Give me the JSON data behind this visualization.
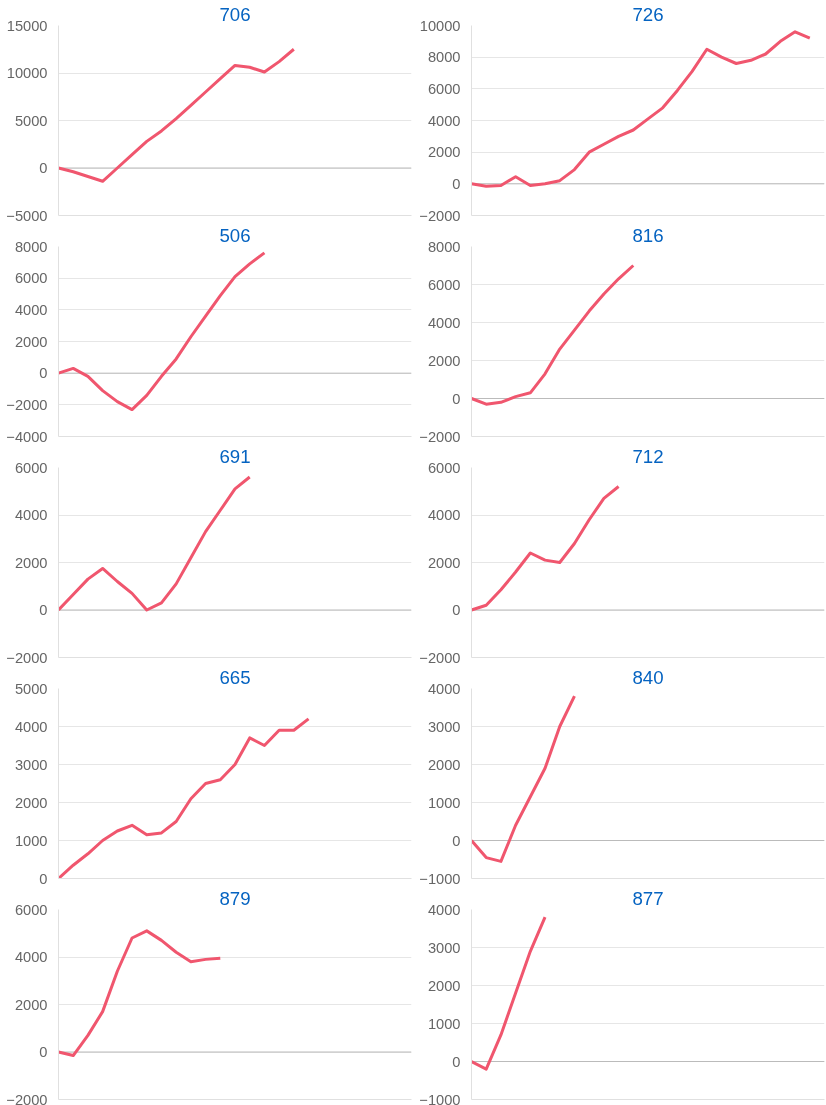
{
  "chart_data": [
    {
      "type": "line",
      "title": "706",
      "categories": [
        null,
        null,
        null,
        null,
        null,
        null,
        null,
        null,
        null,
        null,
        null,
        null,
        null,
        null,
        null,
        null,
        null,
        null,
        null,
        null,
        null,
        null,
        null,
        null,
        null
      ],
      "series": [
        {
          "color": "#f0566e",
          "values": [
            0,
            -400,
            -900,
            -1400,
            0,
            1400,
            2800,
            3900,
            5200,
            6600,
            8000,
            9400,
            10800,
            10600,
            10100,
            11200,
            12500,
            null,
            null,
            null,
            null,
            null,
            null,
            null,
            null
          ]
        }
      ],
      "ylim": [
        -5000,
        15000
      ],
      "yticks": [
        -5000,
        0,
        5000,
        10000,
        15000
      ],
      "grid": "y",
      "tick_labels": "y"
    },
    {
      "type": "line",
      "title": "726",
      "categories": [
        null,
        null,
        null,
        null,
        null,
        null,
        null,
        null,
        null,
        null,
        null,
        null,
        null,
        null,
        null,
        null,
        null,
        null,
        null,
        null,
        null,
        null,
        null,
        null,
        null
      ],
      "series": [
        {
          "color": "#f0566e",
          "values": [
            0,
            -150,
            -100,
            450,
            -100,
            0,
            200,
            900,
            2000,
            2500,
            3000,
            3400,
            4100,
            4800,
            5900,
            7100,
            8500,
            8000,
            7600,
            7800,
            8200,
            9000,
            9600,
            9200,
            null
          ]
        }
      ],
      "ylim": [
        -2000,
        10000
      ],
      "yticks": [
        -2000,
        0,
        2000,
        4000,
        6000,
        8000,
        10000
      ],
      "grid": "y",
      "tick_labels": "y"
    },
    {
      "type": "line",
      "title": "506",
      "categories": [
        null,
        null,
        null,
        null,
        null,
        null,
        null,
        null,
        null,
        null,
        null,
        null,
        null,
        null,
        null,
        null,
        null,
        null,
        null,
        null,
        null,
        null,
        null,
        null,
        null
      ],
      "series": [
        {
          "color": "#f0566e",
          "values": [
            0,
            300,
            -200,
            -1100,
            -1800,
            -2300,
            -1400,
            -200,
            900,
            2300,
            3600,
            4900,
            6100,
            6900,
            7600,
            null,
            null,
            null,
            null,
            null,
            null,
            null,
            null,
            null,
            null
          ]
        }
      ],
      "ylim": [
        -4000,
        8000
      ],
      "yticks": [
        -4000,
        -2000,
        0,
        2000,
        4000,
        6000,
        8000
      ],
      "grid": "y",
      "tick_labels": "y"
    },
    {
      "type": "line",
      "title": "816",
      "categories": [
        null,
        null,
        null,
        null,
        null,
        null,
        null,
        null,
        null,
        null,
        null,
        null,
        null,
        null,
        null,
        null,
        null,
        null,
        null,
        null,
        null,
        null,
        null,
        null,
        null
      ],
      "series": [
        {
          "color": "#f0566e",
          "values": [
            0,
            -300,
            -200,
            100,
            300,
            1300,
            2600,
            3600,
            4600,
            5500,
            6300,
            7000,
            null,
            null,
            null,
            null,
            null,
            null,
            null,
            null,
            null,
            null,
            null,
            null,
            null
          ]
        }
      ],
      "ylim": [
        -2000,
        8000
      ],
      "yticks": [
        -2000,
        0,
        2000,
        4000,
        6000,
        8000
      ],
      "grid": "y",
      "tick_labels": "y"
    },
    {
      "type": "line",
      "title": "691",
      "categories": [
        null,
        null,
        null,
        null,
        null,
        null,
        null,
        null,
        null,
        null,
        null,
        null,
        null,
        null,
        null,
        null,
        null,
        null,
        null,
        null,
        null,
        null,
        null,
        null,
        null
      ],
      "series": [
        {
          "color": "#f0566e",
          "values": [
            0,
            650,
            1300,
            1750,
            1200,
            700,
            0,
            300,
            1100,
            2200,
            3300,
            4200,
            5100,
            5600,
            null,
            null,
            null,
            null,
            null,
            null,
            null,
            null,
            null,
            null,
            null
          ]
        }
      ],
      "ylim": [
        -2000,
        6000
      ],
      "yticks": [
        -2000,
        0,
        2000,
        4000,
        6000
      ],
      "grid": "y",
      "tick_labels": "y"
    },
    {
      "type": "line",
      "title": "712",
      "categories": [
        null,
        null,
        null,
        null,
        null,
        null,
        null,
        null,
        null,
        null,
        null,
        null,
        null,
        null,
        null,
        null,
        null,
        null,
        null,
        null,
        null,
        null,
        null,
        null,
        null
      ],
      "series": [
        {
          "color": "#f0566e",
          "values": [
            0,
            200,
            850,
            1600,
            2400,
            2100,
            2000,
            2800,
            3800,
            4700,
            5200,
            null,
            null,
            null,
            null,
            null,
            null,
            null,
            null,
            null,
            null,
            null,
            null,
            null,
            null
          ]
        }
      ],
      "ylim": [
        -2000,
        6000
      ],
      "yticks": [
        -2000,
        0,
        2000,
        4000,
        6000
      ],
      "grid": "y",
      "tick_labels": "y"
    },
    {
      "type": "line",
      "title": "665",
      "categories": [
        null,
        null,
        null,
        null,
        null,
        null,
        null,
        null,
        null,
        null,
        null,
        null,
        null,
        null,
        null,
        null,
        null,
        null,
        null,
        null,
        null,
        null,
        null,
        null,
        null
      ],
      "series": [
        {
          "color": "#f0566e",
          "values": [
            0,
            350,
            650,
            1000,
            1250,
            1400,
            1150,
            1200,
            1500,
            2100,
            2500,
            2600,
            3000,
            3700,
            3500,
            3900,
            3900,
            4200,
            null,
            null,
            null,
            null,
            null,
            null,
            null
          ]
        }
      ],
      "ylim": [
        0,
        5000
      ],
      "yticks": [
        0,
        1000,
        2000,
        3000,
        4000,
        5000
      ],
      "grid": "y",
      "tick_labels": "y"
    },
    {
      "type": "line",
      "title": "840",
      "categories": [
        null,
        null,
        null,
        null,
        null,
        null,
        null,
        null,
        null,
        null,
        null,
        null,
        null,
        null,
        null,
        null,
        null,
        null,
        null,
        null,
        null,
        null,
        null,
        null,
        null
      ],
      "series": [
        {
          "color": "#f0566e",
          "values": [
            0,
            -450,
            -550,
            400,
            1150,
            1900,
            3000,
            3800,
            null,
            null,
            null,
            null,
            null,
            null,
            null,
            null,
            null,
            null,
            null,
            null,
            null,
            null,
            null,
            null,
            null
          ]
        }
      ],
      "ylim": [
        -1000,
        4000
      ],
      "yticks": [
        -1000,
        0,
        1000,
        2000,
        3000,
        4000
      ],
      "grid": "y",
      "tick_labels": "y"
    },
    {
      "type": "line",
      "title": "879",
      "categories": [
        null,
        null,
        null,
        null,
        null,
        null,
        null,
        null,
        null,
        null,
        null,
        null,
        null,
        null,
        null,
        null,
        null,
        null,
        null,
        null,
        null,
        null,
        null,
        null,
        null
      ],
      "series": [
        {
          "color": "#f0566e",
          "values": [
            0,
            -150,
            700,
            1700,
            3400,
            4800,
            5100,
            4700,
            4200,
            3800,
            3900,
            3950,
            null,
            null,
            null,
            null,
            null,
            null,
            null,
            null,
            null,
            null,
            null,
            null,
            null
          ]
        }
      ],
      "ylim": [
        -2000,
        6000
      ],
      "yticks": [
        -2000,
        0,
        2000,
        4000,
        6000
      ],
      "grid": "y",
      "tick_labels": "y"
    },
    {
      "type": "line",
      "title": "877",
      "categories": [
        null,
        null,
        null,
        null,
        null,
        null,
        null,
        null,
        null,
        null,
        null,
        null,
        null,
        null,
        null,
        null,
        null,
        null,
        null,
        null,
        null,
        null,
        null,
        null,
        null
      ],
      "series": [
        {
          "color": "#f0566e",
          "values": [
            0,
            -200,
            700,
            1800,
            2900,
            3800,
            null,
            null,
            null,
            null,
            null,
            null,
            null,
            null,
            null,
            null,
            null,
            null,
            null,
            null,
            null,
            null,
            null,
            null,
            null
          ]
        }
      ],
      "ylim": [
        -1000,
        4000
      ],
      "yticks": [
        -1000,
        0,
        1000,
        2000,
        3000,
        4000
      ],
      "grid": "y",
      "tick_labels": "y"
    }
  ]
}
